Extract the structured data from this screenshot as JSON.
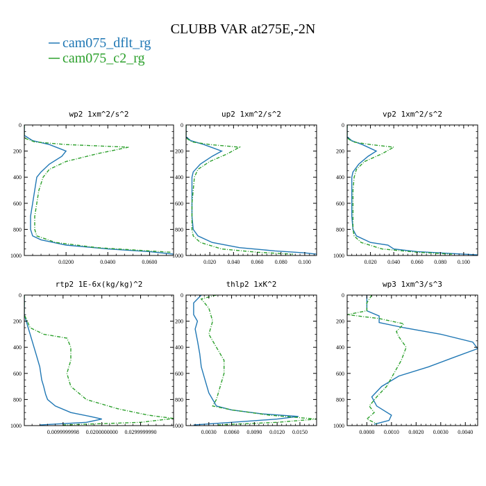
{
  "title": "CLUBB VAR at275E,-2N",
  "legend": [
    {
      "label": "cam075_dflt_rg",
      "color": "#1f77b4",
      "dash": "solid"
    },
    {
      "label": "cam075_c2_rg",
      "color": "#2ca02c",
      "dash": "dashdot"
    }
  ],
  "chart_data": [
    {
      "type": "line",
      "title": "wp2  1xm^2/s^2",
      "ylim": [
        0,
        1000
      ],
      "xlim": [
        0.0,
        0.0715
      ],
      "xticks": [
        0.02,
        0.04,
        0.06
      ],
      "xticklabels": [
        "0.0200",
        "0.0400",
        "0.0600"
      ],
      "yticks": [
        0,
        200,
        400,
        600,
        800,
        1000
      ],
      "yticklabels": [
        "0",
        "200",
        "400",
        "600",
        "800",
        "1000"
      ],
      "series": [
        {
          "name": "cam075_dflt_rg",
          "x": [
            0.0,
            0.0,
            0.004,
            0.012,
            0.02,
            0.018,
            0.012,
            0.008,
            0.006,
            0.005,
            0.004,
            0.003,
            0.003,
            0.004,
            0.008,
            0.02,
            0.04,
            0.06,
            0.0715
          ],
          "y": [
            0,
            80,
            120,
            150,
            200,
            240,
            300,
            360,
            400,
            500,
            600,
            700,
            800,
            850,
            880,
            920,
            950,
            970,
            990
          ]
        },
        {
          "name": "cam075_c2_rg",
          "x": [
            0.0,
            0.0,
            0.005,
            0.02,
            0.05,
            0.035,
            0.02,
            0.012,
            0.009,
            0.007,
            0.006,
            0.005,
            0.005,
            0.006,
            0.015,
            0.035,
            0.055,
            0.07
          ],
          "y": [
            0,
            100,
            130,
            150,
            170,
            220,
            280,
            340,
            400,
            500,
            600,
            700,
            800,
            850,
            900,
            940,
            960,
            975
          ]
        }
      ]
    },
    {
      "type": "line",
      "title": "up2  1xm^2/s^2",
      "ylim": [
        0,
        1000
      ],
      "xlim": [
        0.0,
        0.11
      ],
      "xticks": [
        0.02,
        0.04,
        0.06,
        0.08,
        0.1
      ],
      "xticklabels": [
        "0.020",
        "0.040",
        "0.060",
        "0.080",
        "0.100"
      ],
      "yticks": [
        0,
        200,
        400,
        600,
        800,
        1000
      ],
      "yticklabels": [
        "0",
        "200",
        "400",
        "600",
        "800",
        "1000"
      ],
      "series": [
        {
          "name": "cam075_dflt_rg",
          "x": [
            0.0,
            0.0,
            0.004,
            0.015,
            0.03,
            0.022,
            0.012,
            0.006,
            0.005,
            0.005,
            0.005,
            0.006,
            0.01,
            0.022,
            0.045,
            0.075,
            0.1,
            0.11
          ],
          "y": [
            0,
            90,
            120,
            150,
            200,
            240,
            300,
            360,
            400,
            500,
            700,
            800,
            850,
            900,
            940,
            965,
            980,
            990
          ]
        },
        {
          "name": "cam075_c2_rg",
          "x": [
            0.0,
            0.0,
            0.005,
            0.02,
            0.045,
            0.035,
            0.02,
            0.01,
            0.007,
            0.006,
            0.005,
            0.005,
            0.006,
            0.012,
            0.03,
            0.06,
            0.09
          ],
          "y": [
            0,
            100,
            130,
            150,
            170,
            220,
            280,
            340,
            400,
            500,
            600,
            800,
            850,
            900,
            950,
            975,
            990
          ]
        }
      ]
    },
    {
      "type": "line",
      "title": "vp2  1xm^2/s^2",
      "ylim": [
        0,
        1000
      ],
      "xlim": [
        0.0,
        0.112
      ],
      "xticks": [
        0.02,
        0.04,
        0.06,
        0.08,
        0.1
      ],
      "xticklabels": [
        "0.020",
        "0.040",
        "0.060",
        "0.080",
        "0.100"
      ],
      "yticks": [
        0,
        200,
        400,
        600,
        800,
        1000
      ],
      "yticklabels": [
        "0",
        "200",
        "400",
        "600",
        "800",
        "1000"
      ],
      "series": [
        {
          "name": "cam075_dflt_rg",
          "x": [
            0.0,
            0.0,
            0.004,
            0.013,
            0.025,
            0.018,
            0.01,
            0.005,
            0.004,
            0.004,
            0.004,
            0.005,
            0.008,
            0.02,
            0.035,
            0.04,
            0.06,
            0.09,
            0.112
          ],
          "y": [
            0,
            90,
            120,
            150,
            200,
            240,
            300,
            360,
            400,
            500,
            700,
            800,
            850,
            900,
            920,
            950,
            970,
            985,
            995
          ]
        },
        {
          "name": "cam075_c2_rg",
          "x": [
            0.0,
            0.0,
            0.005,
            0.02,
            0.04,
            0.03,
            0.015,
            0.008,
            0.006,
            0.005,
            0.005,
            0.006,
            0.012,
            0.03,
            0.06,
            0.09
          ],
          "y": [
            0,
            100,
            130,
            150,
            170,
            220,
            280,
            340,
            400,
            500,
            800,
            850,
            900,
            950,
            975,
            990
          ]
        }
      ]
    },
    {
      "type": "line",
      "title": "rtp2  1E-6x(kg/kg)^2",
      "ylim": [
        0,
        1000
      ],
      "xlim": [
        0.0,
        0.0385
      ],
      "xticks": [
        0.01,
        0.02,
        0.03
      ],
      "xticklabels": [
        "0.0099999998",
        "0.0200000000",
        "0.0299999990"
      ],
      "yticks": [
        0,
        200,
        400,
        600,
        800,
        1000
      ],
      "yticklabels": [
        "0",
        "200",
        "400",
        "600",
        "800",
        "1000"
      ],
      "series": [
        {
          "name": "cam075_dflt_rg",
          "x": [
            0.0,
            0.0,
            0.001,
            0.002,
            0.003,
            0.004,
            0.0045,
            0.005,
            0.0055,
            0.006,
            0.008,
            0.012,
            0.017,
            0.02,
            0.016,
            0.004
          ],
          "y": [
            0,
            150,
            250,
            350,
            450,
            550,
            650,
            700,
            760,
            800,
            850,
            900,
            930,
            950,
            975,
            995
          ]
        },
        {
          "name": "cam075_c2_rg",
          "x": [
            0.0,
            0.0,
            0.0015,
            0.005,
            0.011,
            0.012,
            0.012,
            0.011,
            0.012,
            0.016,
            0.024,
            0.032,
            0.0385,
            0.03,
            0.01
          ],
          "y": [
            0,
            150,
            250,
            300,
            330,
            400,
            500,
            600,
            700,
            800,
            870,
            920,
            945,
            975,
            995
          ]
        }
      ]
    },
    {
      "type": "line",
      "title": "thlp2  1xK^2",
      "ylim": [
        0,
        1000
      ],
      "xlim": [
        0.0,
        0.0172
      ],
      "xticks": [
        0.003,
        0.006,
        0.009,
        0.012,
        0.015
      ],
      "xticklabels": [
        "0.0030",
        "0.0060",
        "0.0090",
        "0.0120",
        "0.0150"
      ],
      "yticks": [
        0,
        200,
        400,
        600,
        800,
        1000
      ],
      "yticklabels": [
        "0",
        "200",
        "400",
        "600",
        "800",
        "1000"
      ],
      "series": [
        {
          "name": "cam075_dflt_rg",
          "x": [
            0.002,
            0.001,
            0.001,
            0.0015,
            0.0012,
            0.0015,
            0.0018,
            0.002,
            0.0025,
            0.003,
            0.0035,
            0.004,
            0.006,
            0.01,
            0.0148,
            0.012,
            0.006,
            0.001
          ],
          "y": [
            0,
            60,
            150,
            200,
            260,
            350,
            450,
            550,
            650,
            750,
            800,
            850,
            880,
            910,
            930,
            950,
            975,
            995
          ]
        },
        {
          "name": "cam075_c2_rg",
          "x": [
            0.004,
            0.002,
            0.003,
            0.0035,
            0.003,
            0.004,
            0.005,
            0.005,
            0.0045,
            0.004,
            0.0035,
            0.006,
            0.011,
            0.0172,
            0.012,
            0.004
          ],
          "y": [
            0,
            30,
            100,
            200,
            300,
            400,
            500,
            600,
            700,
            800,
            850,
            880,
            920,
            950,
            975,
            995
          ]
        }
      ]
    },
    {
      "type": "line",
      "title": "wp3  1xm^3/s^3",
      "ylim": [
        0,
        1000
      ],
      "xlim": [
        -0.0008,
        0.0045
      ],
      "xticks": [
        0.0,
        0.001,
        0.002,
        0.003,
        0.004
      ],
      "xticklabels": [
        "0.0000",
        "0.0010",
        "0.0020",
        "0.0030",
        "0.0040"
      ],
      "yticks": [
        0,
        200,
        400,
        600,
        800,
        1000
      ],
      "yticklabels": [
        "0",
        "200",
        "400",
        "600",
        "800",
        "1000"
      ],
      "series": [
        {
          "name": "cam075_dflt_rg",
          "x": [
            0.0,
            0.0,
            0.0005,
            0.0005,
            0.0015,
            0.003,
            0.0043,
            0.0045,
            0.0035,
            0.0025,
            0.0013,
            0.0006,
            0.0002,
            0.0004,
            0.001,
            0.0009,
            0.0003
          ],
          "y": [
            0,
            120,
            160,
            210,
            250,
            300,
            360,
            410,
            480,
            550,
            620,
            700,
            780,
            850,
            920,
            960,
            990
          ]
        },
        {
          "name": "cam075_c2_rg",
          "x": [
            0.0002,
            0.0,
            0.0,
            -0.0008,
            0.0005,
            0.0015,
            0.0012,
            0.0013,
            0.0016,
            0.0014,
            0.0011,
            0.0008,
            0.0004,
            0.0001,
            0.0003,
            0.0,
            0.0004
          ],
          "y": [
            0,
            60,
            120,
            150,
            180,
            220,
            280,
            320,
            400,
            500,
            600,
            700,
            780,
            850,
            900,
            950,
            985
          ]
        }
      ]
    }
  ]
}
